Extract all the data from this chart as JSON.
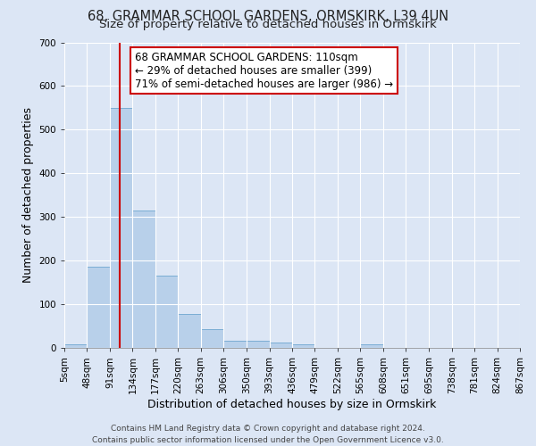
{
  "title1": "68, GRAMMAR SCHOOL GARDENS, ORMSKIRK, L39 4UN",
  "title2": "Size of property relative to detached houses in Ormskirk",
  "xlabel": "Distribution of detached houses by size in Ormskirk",
  "ylabel": "Number of detached properties",
  "bar_color": "#b8d0ea",
  "bar_edge_color": "#7aadd4",
  "background_color": "#dce6f5",
  "grid_color": "#ffffff",
  "redline_color": "#cc0000",
  "redline_x": 110,
  "annotation_text": "68 GRAMMAR SCHOOL GARDENS: 110sqm\n← 29% of detached houses are smaller (399)\n71% of semi-detached houses are larger (986) →",
  "annotation_box_facecolor": "#ffffff",
  "annotation_box_edgecolor": "#cc0000",
  "bins": [
    5,
    48,
    91,
    134,
    177,
    220,
    263,
    306,
    350,
    393,
    436,
    479,
    522,
    565,
    608,
    651,
    695,
    738,
    781,
    824,
    867
  ],
  "heights": [
    8,
    185,
    550,
    315,
    165,
    78,
    43,
    17,
    17,
    12,
    8,
    0,
    0,
    8,
    0,
    0,
    0,
    0,
    0,
    0
  ],
  "ylim": [
    0,
    700
  ],
  "yticks": [
    0,
    100,
    200,
    300,
    400,
    500,
    600,
    700
  ],
  "xtick_labels": [
    "5sqm",
    "48sqm",
    "91sqm",
    "134sqm",
    "177sqm",
    "220sqm",
    "263sqm",
    "306sqm",
    "350sqm",
    "393sqm",
    "436sqm",
    "479sqm",
    "522sqm",
    "565sqm",
    "608sqm",
    "651sqm",
    "695sqm",
    "738sqm",
    "781sqm",
    "824sqm",
    "867sqm"
  ],
  "footer_text": "Contains HM Land Registry data © Crown copyright and database right 2024.\nContains public sector information licensed under the Open Government Licence v3.0.",
  "title1_fontsize": 10.5,
  "title2_fontsize": 9.5,
  "xlabel_fontsize": 9,
  "ylabel_fontsize": 9,
  "tick_fontsize": 7.5,
  "footer_fontsize": 6.5
}
